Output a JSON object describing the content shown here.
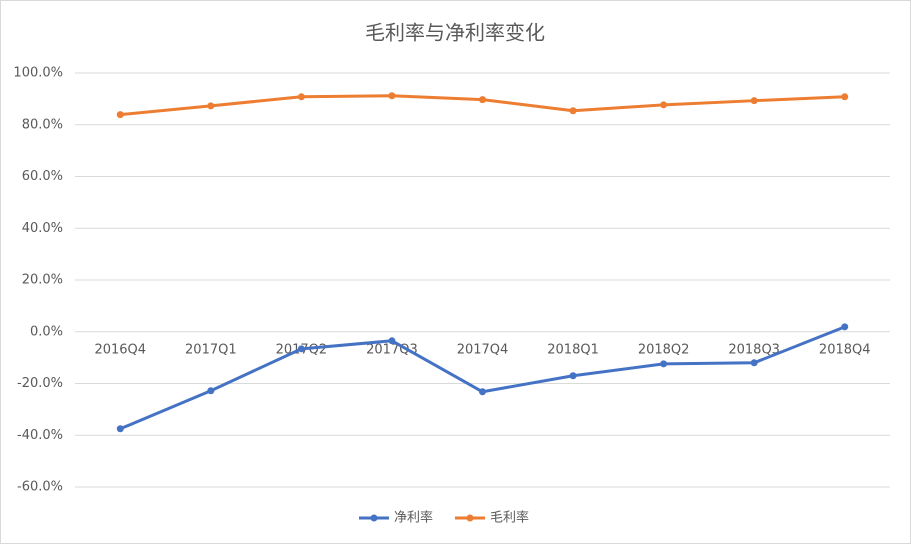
{
  "chart_data": {
    "type": "line",
    "title": "毛利率与净利率变化",
    "categories": [
      "2016Q4",
      "2017Q1",
      "2017Q2",
      "2017Q3",
      "2017Q4",
      "2018Q1",
      "2018Q2",
      "2018Q3",
      "2018Q4"
    ],
    "series": [
      {
        "name": "净利率",
        "color": "#4472c4",
        "values": [
          -37.5,
          -22.8,
          -6.6,
          -3.5,
          -23.2,
          -17.0,
          -12.4,
          -12.0,
          1.9
        ]
      },
      {
        "name": "毛利率",
        "color": "#ed7d31",
        "values": [
          83.9,
          87.3,
          90.8,
          91.2,
          89.7,
          85.4,
          87.7,
          89.3,
          90.8
        ]
      }
    ],
    "ylim": [
      -60,
      100
    ],
    "yticks": [
      {
        "value": -60,
        "label": "-60.0%"
      },
      {
        "value": -40,
        "label": "-40.0%"
      },
      {
        "value": -20,
        "label": "-20.0%"
      },
      {
        "value": 0,
        "label": "0.0%"
      },
      {
        "value": 20,
        "label": "20.0%"
      },
      {
        "value": 40,
        "label": "40.0%"
      },
      {
        "value": 60,
        "label": "60.0%"
      },
      {
        "value": 80,
        "label": "80.0%"
      },
      {
        "value": 100,
        "label": "100.0%"
      }
    ],
    "grid": true,
    "legend": "bottom"
  }
}
